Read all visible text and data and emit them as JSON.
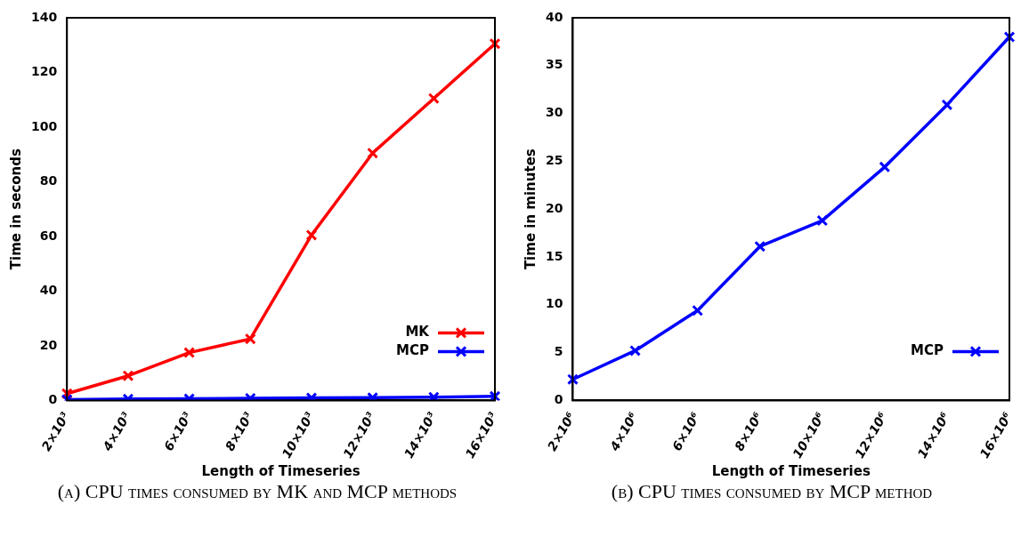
{
  "chart_data": [
    {
      "type": "line",
      "xlabel": "Length of Timeseries",
      "ylabel": "Time in seconds",
      "categories": [
        "2×10³",
        "4×10³",
        "6×10³",
        "8×10³",
        "10×10³",
        "12×10³",
        "14×10³",
        "16×10³"
      ],
      "series": [
        {
          "name": "MK",
          "color": "#ff0000",
          "values": [
            2.5,
            9,
            17.5,
            22.5,
            60.5,
            90.5,
            110.5,
            130.5
          ]
        },
        {
          "name": "MCP",
          "color": "#0000ff",
          "values": [
            0.3,
            0.5,
            0.6,
            0.8,
            0.9,
            1,
            1.2,
            1.5
          ]
        }
      ],
      "ylim": [
        0,
        140
      ],
      "yticks": [
        0,
        20,
        40,
        60,
        80,
        100,
        120,
        140
      ],
      "grid": false,
      "legend": "bottom right",
      "marker": "cross",
      "line_style": "solid",
      "annotations": [
        "(a) CPU times consumed by MK and MCP methods"
      ]
    },
    {
      "type": "line",
      "xlabel": "Length of Timeseries",
      "ylabel": "Time in minutes",
      "categories": [
        "2×10⁶",
        "4×10⁶",
        "6×10⁶",
        "8×10⁶",
        "10×10⁶",
        "12×10⁶",
        "14×10⁶",
        "16×10⁶"
      ],
      "series": [
        {
          "name": "MCP",
          "color": "#0000ff",
          "values": [
            2.2,
            5.2,
            9.4,
            16.1,
            18.8,
            24.4,
            30.9,
            38
          ]
        }
      ],
      "ylim": [
        0,
        40
      ],
      "yticks": [
        0,
        5,
        10,
        15,
        20,
        25,
        30,
        35,
        40
      ],
      "grid": false,
      "legend": "bottom right",
      "marker": "cross",
      "line_style": "solid",
      "annotations": [
        "(b) CPU times consumed by MCP method"
      ]
    }
  ]
}
